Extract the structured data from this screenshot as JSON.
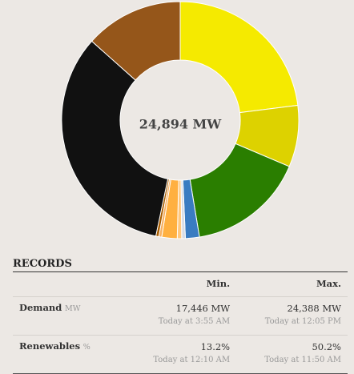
{
  "chart_data": {
    "type": "pie",
    "center_label": "24,894 MW",
    "slices": [
      {
        "value": 23.0,
        "color": "#f5ea00"
      },
      {
        "value": 8.4,
        "color": "#ddd200"
      },
      {
        "value": 16.0,
        "color": "#2a7e00"
      },
      {
        "value": 1.9,
        "color": "#3a7cc1"
      },
      {
        "value": 0.5,
        "color": "#d8dde6"
      },
      {
        "value": 0.6,
        "color": "#ffc880"
      },
      {
        "value": 2.1,
        "color": "#ffb040"
      },
      {
        "value": 0.4,
        "color": "#f7b060"
      },
      {
        "value": 0.4,
        "color": "#a85d00"
      },
      {
        "value": 33.3,
        "color": "#111111"
      },
      {
        "value": 13.4,
        "color": "#95561a"
      }
    ]
  },
  "records": {
    "title": "RECORDS",
    "col_min": "Min.",
    "col_max": "Max.",
    "rows": [
      {
        "label": "Demand",
        "unit": "MW",
        "min": "17,446 MW",
        "min_time": "Today at 3:55 AM",
        "max": "24,388 MW",
        "max_time": "Today at 12:05 PM"
      },
      {
        "label": "Renewables",
        "unit": "%",
        "min": "13.2%",
        "min_time": "Today at 12:10 AM",
        "max": "50.2%",
        "max_time": "Today at 11:50 AM"
      }
    ]
  }
}
